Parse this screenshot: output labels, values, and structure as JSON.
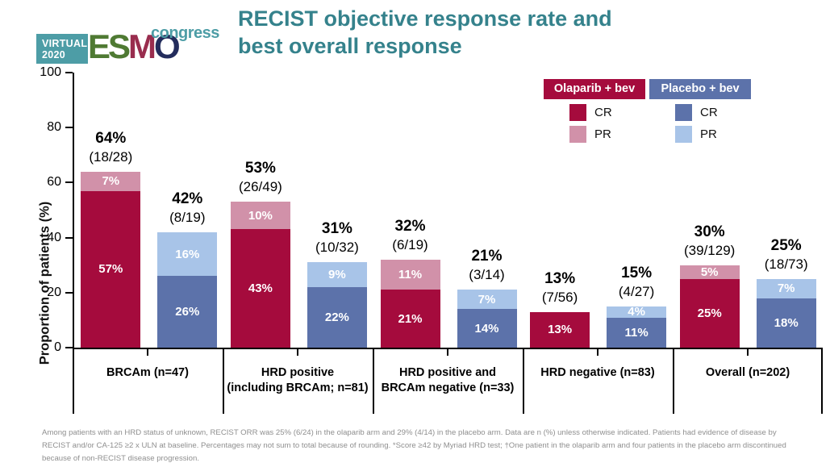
{
  "logo": {
    "virtual_line1": "VIRTUAL",
    "virtual_line2": "2020",
    "letters": [
      {
        "ch": "E"
      },
      {
        "ch": "S"
      },
      {
        "ch": "M"
      },
      {
        "ch": "O"
      }
    ],
    "congress": "congress"
  },
  "title": {
    "line1": "RECIST objective response rate and",
    "line2": "best overall response"
  },
  "legend": {
    "cr_label": "CR",
    "pr_label": "PR"
  },
  "y_axis": {
    "label": "Proportion of patients (%)"
  },
  "colors": {
    "title_teal": "#35828C",
    "logo_teal": "#4D9DA6",
    "esmo_green": "#4F7A33",
    "esmo_maroon": "#992D4E",
    "esmo_navy": "#232C5C",
    "olaparib_cr": "#A50B3D",
    "olaparib_pr": "#D191A9",
    "placebo_cr": "#5C72AA",
    "placebo_pr": "#A8C4E8",
    "footnote_gray": "#8F8F8F"
  },
  "chart_data": {
    "type": "bar",
    "stacked": true,
    "title": "RECIST objective response rate and best overall response",
    "ylabel": "Proportion of patients (%)",
    "ylim": [
      0,
      100
    ],
    "yticks": [
      0,
      20,
      40,
      60,
      80,
      100
    ],
    "grid": false,
    "legend_position": "top-right",
    "arms": [
      {
        "id": "olaparib",
        "label": "Olaparib + bev",
        "cr_color": "#A50B3D",
        "pr_color": "#D191A9"
      },
      {
        "id": "placebo",
        "label": "Placebo + bev",
        "cr_color": "#5C72AA",
        "pr_color": "#A8C4E8"
      }
    ],
    "groups": [
      {
        "category_lines": [
          "BRCAm (n=47)"
        ],
        "bars": [
          {
            "arm": "olaparib",
            "total": "64%",
            "frac": "(18/28)",
            "cr": 57,
            "pr": 7,
            "cr_label": "57%",
            "pr_label": "7%"
          },
          {
            "arm": "placebo",
            "total": "42%",
            "frac": "(8/19)",
            "cr": 26,
            "pr": 16,
            "cr_label": "26%",
            "pr_label": "16%"
          }
        ]
      },
      {
        "category_lines": [
          "HRD positive",
          "(including BRCAm; n=81)"
        ],
        "bars": [
          {
            "arm": "olaparib",
            "total": "53%",
            "frac": "(26/49)",
            "cr": 43,
            "pr": 10,
            "cr_label": "43%",
            "pr_label": "10%"
          },
          {
            "arm": "placebo",
            "total": "31%",
            "frac": "(10/32)",
            "cr": 22,
            "pr": 9,
            "cr_label": "22%",
            "pr_label": "9%"
          }
        ]
      },
      {
        "category_lines": [
          "HRD positive and",
          "BRCAm negative (n=33)"
        ],
        "bars": [
          {
            "arm": "olaparib",
            "total": "32%",
            "frac": "(6/19)",
            "cr": 21,
            "pr": 11,
            "cr_label": "21%",
            "pr_label": "11%"
          },
          {
            "arm": "placebo",
            "total": "21%",
            "frac": "(3/14)",
            "cr": 14,
            "pr": 7,
            "cr_label": "14%",
            "pr_label": "7%"
          }
        ]
      },
      {
        "category_lines": [
          "HRD negative (n=83)"
        ],
        "bars": [
          {
            "arm": "olaparib",
            "total": "13%",
            "frac": "(7/56)",
            "cr": 13,
            "pr": 0,
            "cr_label": "13%",
            "pr_label": ""
          },
          {
            "arm": "placebo",
            "total": "15%",
            "frac": "(4/27)",
            "cr": 11,
            "pr": 4,
            "cr_label": "11%",
            "pr_label": "4%"
          }
        ]
      },
      {
        "category_lines": [
          "Overall (n=202)"
        ],
        "bars": [
          {
            "arm": "olaparib",
            "total": "30%",
            "frac": "(39/129)",
            "cr": 25,
            "pr": 5,
            "cr_label": "25%",
            "pr_label": "5%"
          },
          {
            "arm": "placebo",
            "total": "25%",
            "frac": "(18/73)",
            "cr": 18,
            "pr": 7,
            "cr_label": "18%",
            "pr_label": "7%"
          }
        ]
      }
    ]
  },
  "footnote": {
    "lines": [
      "Among patients with an HRD status of unknown, RECIST ORR was 25% (6/24) in the olaparib arm and 29% (4/14) in the placebo arm. Data are n (%) unless otherwise indicated. Patients had evidence of disease by",
      "RECIST and/or CA-125 ≥2 x ULN at baseline. Percentages may not sum to total because of rounding. *Score ≥42 by Myriad HRD test; †One patient in the olaparib arm and four patients in the placebo arm discontinued",
      "because of non-RECIST disease progression."
    ]
  }
}
